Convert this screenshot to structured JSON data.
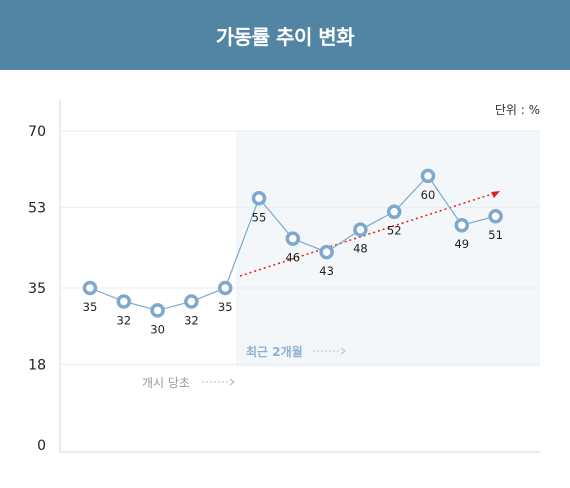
{
  "header": {
    "title": "가동률 추이 변화"
  },
  "chart_data": {
    "type": "line",
    "unit_label": "단위 : %",
    "y_ticks": [
      "70",
      "53",
      "35",
      "18",
      "0"
    ],
    "y_tick_values": [
      70,
      53,
      35,
      18,
      0
    ],
    "ylim": [
      0,
      70
    ],
    "points": [
      35,
      32,
      30,
      32,
      35,
      55,
      46,
      43,
      48,
      52,
      60,
      49,
      51
    ],
    "labels": [
      "35",
      "32",
      "30",
      "32",
      "35",
      "55",
      "46",
      "43",
      "48",
      "52",
      "60",
      "49",
      "51"
    ],
    "highlight_start_index": 5,
    "annotations": {
      "recent": "최근 2개월",
      "start": "개시 당초"
    },
    "colors": {
      "line": "#7ea8cc",
      "highlight_bg": "#f3f7fa",
      "trend": "#e02020",
      "recent_text": "#8eb1d1",
      "start_text": "#9a9a9a"
    },
    "grid": true
  }
}
